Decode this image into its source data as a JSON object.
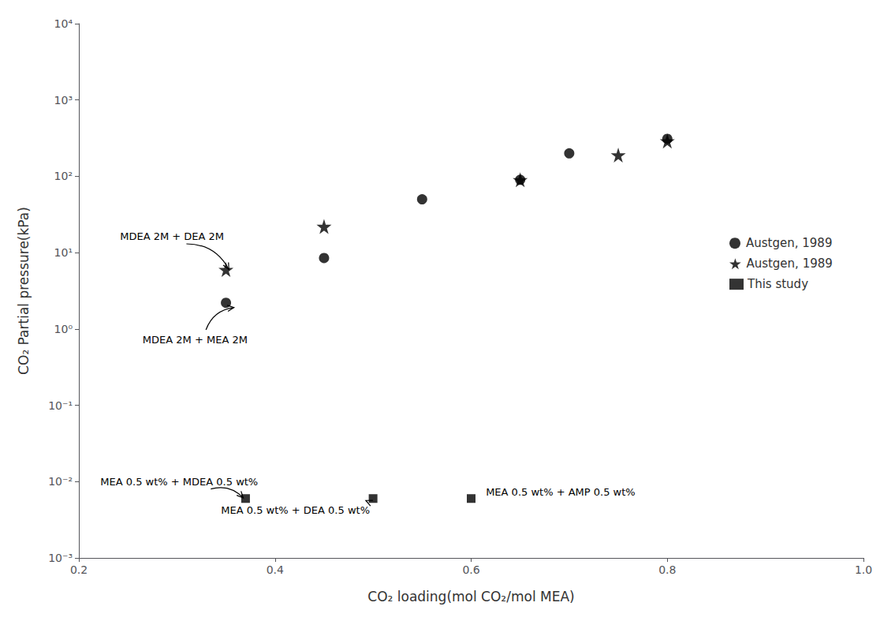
{
  "chart_data": {
    "type": "scatter",
    "xlabel": "CO₂ loading(mol CO₂/mol MEA)",
    "ylabel": "CO₂ Partial pressure(kPa)",
    "xlim": [
      0.2,
      1.0
    ],
    "ylim": [
      0.001,
      10000
    ],
    "xticks": [
      0.2,
      0.4,
      0.6,
      0.8,
      {
        "value": 1.0,
        "label": "1.0"
      }
    ],
    "yticks": [
      {
        "value": 0.001,
        "label": "10⁻³"
      },
      {
        "value": 0.01,
        "label": "10⁻²"
      },
      {
        "value": 0.1,
        "label": "10⁻¹"
      },
      {
        "value": 1,
        "label": "10⁰"
      },
      {
        "value": 10,
        "label": "10¹"
      },
      {
        "value": 100,
        "label": "10²"
      },
      {
        "value": 1000,
        "label": "10³"
      },
      {
        "value": 10000,
        "label": "10⁴"
      }
    ],
    "log": "y",
    "grid": false,
    "legend": "right",
    "series": [
      {
        "name": "Austgen, 1989",
        "color": "#000000",
        "marker": "circle",
        "x": [
          0.35,
          0.45,
          0.55,
          0.65,
          0.7,
          0.8
        ],
        "values": [
          2.2,
          8.5,
          50,
          90,
          200,
          310
        ]
      },
      {
        "name": "Austgen, 1989",
        "color": "#000000",
        "marker": "star",
        "x": [
          0.35,
          0.45,
          0.65,
          0.75,
          0.8
        ],
        "values": [
          6.0,
          22,
          90,
          190,
          290
        ]
      },
      {
        "name": "This study",
        "color": "#000000",
        "marker": "square",
        "x": [
          0.37,
          0.5,
          0.6
        ],
        "values": [
          0.006,
          0.006,
          0.006
        ]
      }
    ],
    "annotations": [
      {
        "text": "MDEA 2M + DEA 2M",
        "x": 0.242,
        "y": 14,
        "xy": [
          0.355,
          5.8
        ]
      },
      {
        "text": "MDEA 2M + MEA 2M",
        "x": 0.265,
        "y": 0.62,
        "xy": [
          0.36,
          2.0
        ]
      },
      {
        "text": "MEA 0.5 wt% + MDEA 0.5 wt%",
        "x": 0.222,
        "y": 0.0086,
        "xy": [
          0.37,
          0.006
        ]
      },
      {
        "text": "MEA 0.5 wt% + DEA 0.5 wt%",
        "x": 0.345,
        "y": 0.0036,
        "xy": [
          0.495,
          0.0057
        ]
      },
      {
        "text": "MEA 0.5 wt% + AMP 0.5 wt%",
        "x": 0.615,
        "y": 0.0063
      }
    ]
  }
}
